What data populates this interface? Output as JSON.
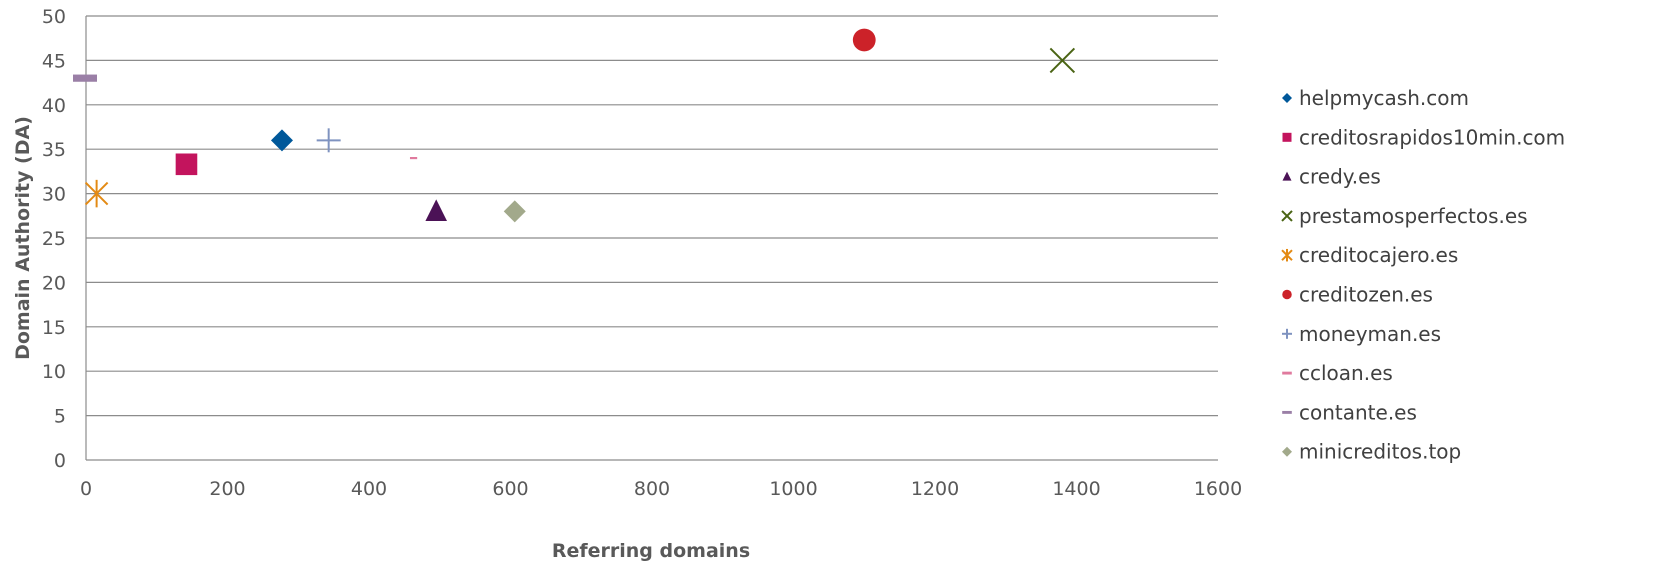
{
  "chart_data": {
    "type": "scatter",
    "title": "",
    "xlabel": "Referring domains",
    "ylabel": "Domain Authority (DA)",
    "xlim": [
      0,
      1600
    ],
    "ylim": [
      0,
      50
    ],
    "xticks": [
      0,
      200,
      400,
      600,
      800,
      1000,
      1200,
      1400,
      1600
    ],
    "yticks": [
      0,
      5,
      10,
      15,
      20,
      25,
      30,
      35,
      40,
      45,
      50
    ],
    "grid": "horizontal",
    "legend_position": "right",
    "series": [
      {
        "name": "helpmycash.com",
        "marker": "diamond",
        "color": "#00589a",
        "x": 277,
        "y": 36
      },
      {
        "name": "creditosrapidos10min.com",
        "marker": "square",
        "color": "#c3145d",
        "x": 142,
        "y": 33.3
      },
      {
        "name": "credy.es",
        "marker": "triangle",
        "color": "#4b1256",
        "x": 495,
        "y": 28
      },
      {
        "name": "prestamosperfectos.es",
        "marker": "x",
        "color": "#4a6414",
        "x": 1380,
        "y": 45
      },
      {
        "name": "creditocajero.es",
        "marker": "star",
        "color": "#e38a14",
        "x": 15,
        "y": 30
      },
      {
        "name": "creditozen.es",
        "marker": "circle",
        "color": "#cc2229",
        "x": 1100,
        "y": 47.3
      },
      {
        "name": "moneyman.es",
        "marker": "plus",
        "color": "#7f93c0",
        "x": 343,
        "y": 36
      },
      {
        "name": "ccloan.es",
        "marker": "dash",
        "color": "#e07a9e",
        "x": 463,
        "y": 34
      },
      {
        "name": "contante.es",
        "marker": "dash",
        "color": "#9a7fa6",
        "x": 0,
        "y": 43
      },
      {
        "name": "minicreditos.top",
        "marker": "diamond",
        "color": "#a2a98b",
        "x": 606,
        "y": 28
      }
    ]
  }
}
